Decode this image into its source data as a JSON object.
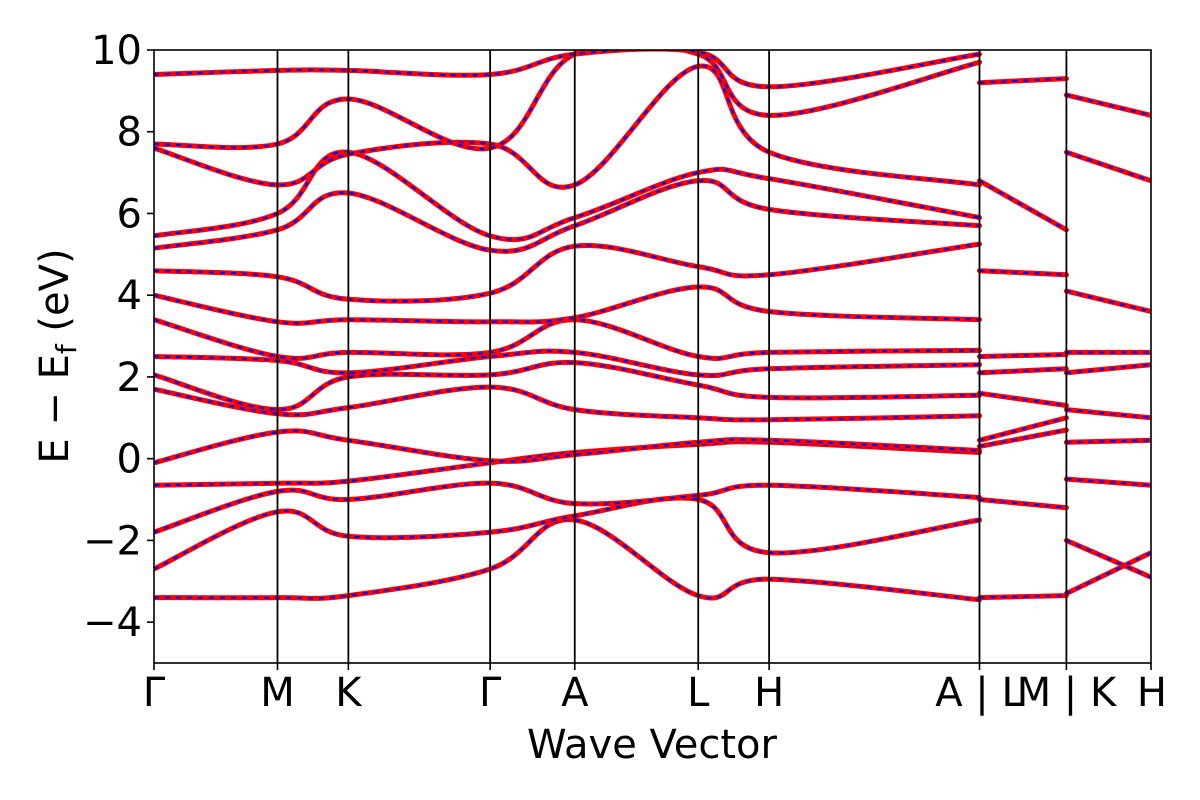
{
  "chart_data": {
    "type": "line",
    "title": "",
    "xlabel": "Wave Vector",
    "ylabel": "E − E_f (eV)",
    "ylabel_parts": {
      "main": "E − E",
      "sub": "f",
      "unit": " (eV)"
    },
    "ylim": [
      -5,
      10
    ],
    "yticks": [
      -4,
      -2,
      0,
      2,
      4,
      6,
      8,
      10
    ],
    "ytick_labels": [
      "−4",
      "−2",
      "0",
      "2",
      "4",
      "6",
      "8",
      "10"
    ],
    "kpath_ticks": [
      {
        "label": "Γ",
        "x": 0.0
      },
      {
        "label": "M",
        "x": 0.54
      },
      {
        "label": "K",
        "x": 0.85
      },
      {
        "label": "Γ",
        "x": 1.47
      },
      {
        "label": "A",
        "x": 1.84
      },
      {
        "label": "L",
        "x": 2.38
      },
      {
        "label": "H",
        "x": 2.69
      },
      {
        "label": "A | L",
        "x": 3.61
      },
      {
        "label": "M | K",
        "x": 3.99
      },
      {
        "label": "H",
        "x": 4.36
      }
    ],
    "xlim": [
      0,
      4.36
    ],
    "series_colors": [
      "#ff0000",
      "#0000ff"
    ],
    "series": [
      {
        "x": [
          0.0,
          0.54,
          0.85,
          1.47,
          1.84,
          2.38,
          2.69,
          3.61
        ],
        "values": [
          -3.4,
          -3.4,
          -3.35,
          -2.7,
          -1.5,
          -3.35,
          -2.95,
          -3.45
        ]
      },
      {
        "x": [
          0.0,
          0.54,
          0.85,
          1.47,
          1.84,
          2.38,
          2.69,
          3.61
        ],
        "values": [
          -2.7,
          -1.3,
          -1.9,
          -1.8,
          -1.4,
          -1.0,
          -2.3,
          -1.5
        ]
      },
      {
        "x": [
          0.0,
          0.54,
          0.85,
          1.47,
          1.84,
          2.38,
          2.69,
          3.61
        ],
        "values": [
          -1.8,
          -0.8,
          -1.0,
          -0.6,
          -1.1,
          -0.9,
          -0.65,
          -0.95
        ]
      },
      {
        "x": [
          0.0,
          0.54,
          0.85,
          1.47,
          1.84,
          2.38,
          2.69,
          3.61
        ],
        "values": [
          -0.65,
          -0.6,
          -0.55,
          -0.1,
          0.15,
          0.35,
          0.4,
          0.15
        ]
      },
      {
        "x": [
          0.0,
          0.54,
          0.85,
          1.47,
          1.84,
          2.38,
          2.69,
          3.61
        ],
        "values": [
          -0.1,
          0.65,
          0.45,
          -0.05,
          0.1,
          0.4,
          0.45,
          0.2
        ]
      },
      {
        "x": [
          0.0,
          0.54,
          0.85,
          1.47,
          1.84,
          2.38,
          2.69,
          3.61
        ],
        "values": [
          1.7,
          1.1,
          1.25,
          1.75,
          1.2,
          1.0,
          0.95,
          1.05
        ]
      },
      {
        "x": [
          0.0,
          0.54,
          0.85,
          1.47,
          1.84,
          2.38,
          2.69,
          3.61
        ],
        "values": [
          2.05,
          1.2,
          2.0,
          2.05,
          2.35,
          1.8,
          1.5,
          1.55
        ]
      },
      {
        "x": [
          0.0,
          0.54,
          0.85,
          1.47,
          1.84,
          2.38,
          2.69,
          3.61
        ],
        "values": [
          2.5,
          2.4,
          2.1,
          2.5,
          2.6,
          2.05,
          2.2,
          2.3
        ]
      },
      {
        "x": [
          0.0,
          0.54,
          0.85,
          1.47,
          1.84,
          2.38,
          2.69,
          3.61
        ],
        "values": [
          3.4,
          2.5,
          2.6,
          2.6,
          3.4,
          2.5,
          2.6,
          2.65
        ]
      },
      {
        "x": [
          0.0,
          0.54,
          0.85,
          1.47,
          1.84,
          2.38,
          2.69,
          3.61
        ],
        "values": [
          4.0,
          3.35,
          3.4,
          3.35,
          3.45,
          4.2,
          3.6,
          3.4
        ]
      },
      {
        "x": [
          0.0,
          0.54,
          0.85,
          1.47,
          1.84,
          2.38,
          2.69,
          3.61
        ],
        "values": [
          4.6,
          4.45,
          3.9,
          4.05,
          5.2,
          4.7,
          4.5,
          5.25
        ]
      },
      {
        "x": [
          0.0,
          0.54,
          0.85,
          1.47,
          1.84,
          2.38,
          2.69,
          3.61
        ],
        "values": [
          5.15,
          5.6,
          6.5,
          5.1,
          5.7,
          6.8,
          6.1,
          5.7
        ]
      },
      {
        "x": [
          0.0,
          0.54,
          0.85,
          1.47,
          1.84,
          2.38,
          2.69,
          3.61
        ],
        "values": [
          5.45,
          6.0,
          7.5,
          5.45,
          5.9,
          7.0,
          6.85,
          5.9
        ]
      },
      {
        "x": [
          0.0,
          0.54,
          0.85,
          1.47,
          1.84,
          2.38,
          2.69,
          3.61
        ],
        "values": [
          7.6,
          6.7,
          7.45,
          7.7,
          6.7,
          9.6,
          7.5,
          6.7
        ]
      },
      {
        "x": [
          0.0,
          0.54,
          0.85,
          1.47,
          1.84,
          2.38,
          2.69,
          3.61
        ],
        "values": [
          7.7,
          7.7,
          8.8,
          7.6,
          9.9,
          9.9,
          8.4,
          9.7
        ]
      },
      {
        "x": [
          0.0,
          0.54,
          0.85,
          1.47,
          1.84,
          2.38,
          2.69,
          3.61
        ],
        "values": [
          9.4,
          9.5,
          9.5,
          9.4,
          9.9,
          9.95,
          9.1,
          9.9
        ]
      },
      {
        "x": [
          3.61,
          3.99
        ],
        "values": [
          -3.4,
          -3.35
        ]
      },
      {
        "x": [
          3.61,
          3.99
        ],
        "values": [
          -1.0,
          -1.2
        ]
      },
      {
        "x": [
          3.61,
          3.99
        ],
        "values": [
          0.3,
          0.7
        ]
      },
      {
        "x": [
          3.61,
          3.99
        ],
        "values": [
          0.45,
          1.0
        ]
      },
      {
        "x": [
          3.61,
          3.99
        ],
        "values": [
          1.6,
          1.3
        ]
      },
      {
        "x": [
          3.61,
          3.99
        ],
        "values": [
          2.1,
          2.2
        ]
      },
      {
        "x": [
          3.61,
          3.99
        ],
        "values": [
          2.5,
          2.55
        ]
      },
      {
        "x": [
          3.61,
          3.99
        ],
        "values": [
          4.6,
          4.5
        ]
      },
      {
        "x": [
          3.61,
          3.99
        ],
        "values": [
          6.8,
          5.6
        ]
      },
      {
        "x": [
          3.61,
          3.99
        ],
        "values": [
          9.2,
          9.3
        ]
      },
      {
        "x": [
          3.99,
          4.36
        ],
        "values": [
          -3.3,
          -2.3
        ]
      },
      {
        "x": [
          3.99,
          4.36
        ],
        "values": [
          -2.0,
          -2.9
        ]
      },
      {
        "x": [
          3.99,
          4.36
        ],
        "values": [
          -0.5,
          -0.65
        ]
      },
      {
        "x": [
          3.99,
          4.36
        ],
        "values": [
          0.4,
          0.45
        ]
      },
      {
        "x": [
          3.99,
          4.36
        ],
        "values": [
          1.2,
          1.0
        ]
      },
      {
        "x": [
          3.99,
          4.36
        ],
        "values": [
          2.1,
          2.3
        ]
      },
      {
        "x": [
          3.99,
          4.36
        ],
        "values": [
          2.6,
          2.6
        ]
      },
      {
        "x": [
          3.99,
          4.36
        ],
        "values": [
          4.1,
          3.6
        ]
      },
      {
        "x": [
          3.99,
          4.36
        ],
        "values": [
          7.5,
          6.8
        ]
      },
      {
        "x": [
          3.99,
          4.36
        ],
        "values": [
          8.9,
          8.4
        ]
      }
    ]
  }
}
